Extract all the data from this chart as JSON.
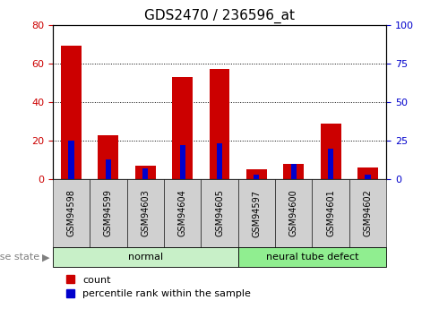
{
  "title": "GDS2470 / 236596_at",
  "samples": [
    "GSM94598",
    "GSM94599",
    "GSM94603",
    "GSM94604",
    "GSM94605",
    "GSM94597",
    "GSM94600",
    "GSM94601",
    "GSM94602"
  ],
  "count_values": [
    69,
    23,
    7,
    53,
    57,
    5,
    8,
    29,
    6
  ],
  "percentile_values": [
    25,
    13,
    7,
    22,
    23,
    3,
    10,
    20,
    3
  ],
  "groups": [
    {
      "label": "normal",
      "start": 0,
      "end": 4,
      "color": "#c8f0c8"
    },
    {
      "label": "neural tube defect",
      "start": 5,
      "end": 8,
      "color": "#90ee90"
    }
  ],
  "left_ylim": [
    0,
    80
  ],
  "right_ylim": [
    0,
    100
  ],
  "left_yticks": [
    0,
    20,
    40,
    60,
    80
  ],
  "right_yticks": [
    0,
    25,
    50,
    75,
    100
  ],
  "bar_color_count": "#cc0000",
  "bar_color_percentile": "#0000cc",
  "grid_color": "black",
  "bg_color": "#ffffff",
  "tick_label_color_left": "#cc0000",
  "tick_label_color_right": "#0000cc",
  "disease_state_label": "disease state",
  "legend_count": "count",
  "legend_percentile": "percentile rank within the sample",
  "title_fontsize": 11,
  "axis_fontsize": 8,
  "label_fontsize": 8,
  "tick_box_color": "#d0d0d0"
}
